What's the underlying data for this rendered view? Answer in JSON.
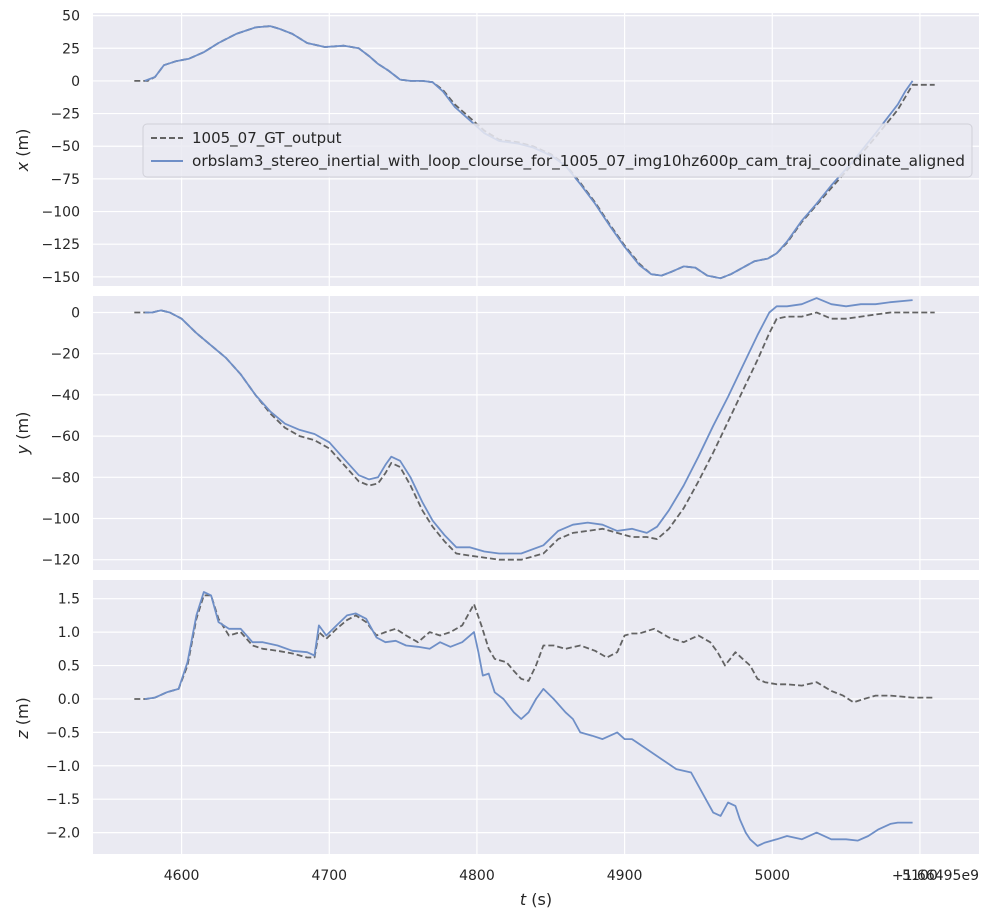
{
  "chart_data": {
    "type": "line",
    "shared_x": {
      "label": "t (s)",
      "label_var": "t",
      "label_unit": " (s)",
      "range": [
        4540,
        5140
      ],
      "ticks": [
        4600,
        4700,
        4800,
        4900,
        5000,
        5100
      ],
      "tick_labels": [
        "4600",
        "4700",
        "4800",
        "4900",
        "5000",
        "5100"
      ],
      "offset_text": "+1.66495e9"
    },
    "legend": {
      "placement": "center-left of top panel",
      "entries": [
        {
          "name": "1005_07_GT_output",
          "style": "dashed",
          "color": "#636363"
        },
        {
          "name": "orbslam3_stereo_inertial_with_loop_clourse_for_1005_07_img10hz600p_cam_traj_coordinate_aligned",
          "style": "solid",
          "color": "#6f8fc7"
        }
      ]
    },
    "panels": [
      {
        "id": "x",
        "ylabel": "x (m)",
        "label_var": "x",
        "label_unit": " (m)",
        "ylim": [
          -157,
          52
        ],
        "yticks": [
          50,
          25,
          0,
          -25,
          -50,
          -75,
          -100,
          -125,
          -150
        ],
        "ytick_labels": [
          "50",
          "25",
          "0",
          "−25",
          "−50",
          "−75",
          "−100",
          "−125",
          "−150"
        ],
        "series": [
          {
            "name": "1005_07_GT_output",
            "x": [
              4568,
              4577,
              4582,
              4588,
              4596,
              4605,
              4615,
              4625,
              4637,
              4650,
              4660,
              4666,
              4675,
              4685,
              4697,
              4710,
              4720,
              4727,
              4733,
              4740,
              4748,
              4755,
              4763,
              4770,
              4777,
              4785,
              4795,
              4805,
              4815,
              4828,
              4838,
              4850,
              4860,
              4870,
              4880,
              4890,
              4900,
              4910,
              4918,
              4925,
              4932,
              4940,
              4948,
              4956,
              4965,
              4972,
              4980,
              4988,
              4997,
              5003,
              5010,
              5020,
              5030,
              5040,
              5055,
              5070,
              5085,
              5095,
              5110
            ],
            "y": [
              0,
              0,
              3,
              12,
              15,
              17,
              22,
              29,
              36,
              41,
              42,
              40,
              36,
              29,
              26,
              27,
              25,
              19,
              13,
              8,
              1,
              0,
              0,
              -1,
              -7,
              -18,
              -28,
              -38,
              -45,
              -47,
              -50,
              -56,
              -64,
              -78,
              -93,
              -110,
              -126,
              -140,
              -148,
              -149,
              -146,
              -142,
              -143,
              -149,
              -151,
              -148,
              -143,
              -138,
              -136,
              -132,
              -124,
              -108,
              -95,
              -82,
              -63,
              -43,
              -22,
              -3,
              -3
            ]
          },
          {
            "name": "orbslam3_stereo_inertial_with_loop_clourse_for_1005_07_img10hz600p_cam_traj_coordinate_aligned",
            "x": [
              4575,
              4582,
              4588,
              4596,
              4605,
              4615,
              4625,
              4637,
              4650,
              4660,
              4666,
              4675,
              4685,
              4697,
              4710,
              4720,
              4727,
              4733,
              4740,
              4748,
              4755,
              4763,
              4770,
              4777,
              4785,
              4795,
              4805,
              4815,
              4828,
              4838,
              4850,
              4860,
              4870,
              4880,
              4890,
              4900,
              4910,
              4918,
              4925,
              4932,
              4940,
              4948,
              4956,
              4965,
              4972,
              4980,
              4988,
              4997,
              5003,
              5010,
              5020,
              5030,
              5040,
              5055,
              5070,
              5085,
              5090,
              5095
            ],
            "y": [
              0,
              3,
              12,
              15,
              17,
              22,
              29,
              36,
              41,
              42,
              40,
              36,
              29,
              26,
              27,
              25,
              19,
              13,
              8,
              1,
              0,
              0,
              -1,
              -8,
              -20,
              -30,
              -40,
              -46,
              -48,
              -51,
              -57,
              -65,
              -79,
              -94,
              -111,
              -127,
              -141,
              -148,
              -149,
              -146,
              -142,
              -143,
              -149,
              -151,
              -148,
              -143,
              -138,
              -136,
              -132,
              -123,
              -107,
              -94,
              -80,
              -61,
              -40,
              -18,
              -8,
              0
            ]
          }
        ]
      },
      {
        "id": "y",
        "ylabel": "y (m)",
        "label_var": "y",
        "label_unit": " (m)",
        "ylim": [
          -125,
          8
        ],
        "yticks": [
          0,
          -20,
          -40,
          -60,
          -80,
          -100,
          -120
        ],
        "ytick_labels": [
          "0",
          "−20",
          "−40",
          "−60",
          "−80",
          "−100",
          "−120"
        ],
        "series": [
          {
            "name": "1005_07_GT_output",
            "x": [
              4568,
              4575,
              4580,
              4586,
              4592,
              4600,
              4610,
              4620,
              4630,
              4640,
              4650,
              4660,
              4670,
              4680,
              4690,
              4700,
              4710,
              4720,
              4727,
              4733,
              4738,
              4742,
              4748,
              4755,
              4763,
              4770,
              4778,
              4786,
              4795,
              4805,
              4815,
              4830,
              4845,
              4855,
              4865,
              4875,
              4885,
              4895,
              4905,
              4915,
              4922,
              4930,
              4940,
              4950,
              4960,
              4970,
              4980,
              4990,
              4998,
              5003,
              5010,
              5020,
              5030,
              5040,
              5050,
              5060,
              5070,
              5080,
              5095,
              5110
            ],
            "y": [
              0,
              0,
              0,
              1,
              0,
              -3,
              -10,
              -16,
              -22,
              -30,
              -40,
              -49,
              -56,
              -60,
              -62,
              -66,
              -74,
              -82,
              -84,
              -83,
              -78,
              -73,
              -75,
              -84,
              -96,
              -104,
              -111,
              -117,
              -118,
              -119,
              -120,
              -120,
              -117,
              -110,
              -107,
              -106,
              -105,
              -107,
              -109,
              -109,
              -110,
              -105,
              -95,
              -82,
              -68,
              -53,
              -38,
              -23,
              -10,
              -3,
              -2,
              -2,
              0,
              -3,
              -3,
              -2,
              -1,
              0,
              0,
              0
            ]
          },
          {
            "name": "orbslam3_stereo_inertial_with_loop_clourse_for_1005_07_img10hz600p_cam_traj_coordinate_aligned",
            "x": [
              4575,
              4580,
              4586,
              4592,
              4600,
              4610,
              4620,
              4630,
              4640,
              4650,
              4660,
              4670,
              4680,
              4690,
              4700,
              4710,
              4720,
              4727,
              4733,
              4738,
              4742,
              4748,
              4755,
              4763,
              4770,
              4778,
              4786,
              4795,
              4805,
              4815,
              4830,
              4845,
              4855,
              4865,
              4875,
              4885,
              4895,
              4905,
              4915,
              4922,
              4930,
              4940,
              4950,
              4960,
              4970,
              4980,
              4990,
              4998,
              5003,
              5010,
              5020,
              5030,
              5040,
              5050,
              5060,
              5070,
              5080,
              5095
            ],
            "y": [
              0,
              0,
              1,
              0,
              -3,
              -10,
              -16,
              -22,
              -30,
              -40,
              -48,
              -54,
              -57,
              -59,
              -63,
              -71,
              -79,
              -81,
              -80,
              -74,
              -70,
              -72,
              -80,
              -92,
              -101,
              -108,
              -114,
              -114,
              -116,
              -117,
              -117,
              -113,
              -106,
              -103,
              -102,
              -103,
              -106,
              -105,
              -107,
              -104,
              -96,
              -84,
              -70,
              -55,
              -41,
              -26,
              -11,
              0,
              3,
              3,
              4,
              7,
              4,
              3,
              4,
              4,
              5,
              6
            ]
          }
        ]
      },
      {
        "id": "z",
        "ylabel": "z (m)",
        "label_var": "z",
        "label_unit": " (m)",
        "ylim": [
          -2.32,
          1.78
        ],
        "yticks": [
          1.5,
          1.0,
          0.5,
          0.0,
          -0.5,
          -1.0,
          -1.5,
          -2.0
        ],
        "ytick_labels": [
          "1.5",
          "1.0",
          "0.5",
          "0.0",
          "−0.5",
          "−1.0",
          "−1.5",
          "−2.0"
        ],
        "series": [
          {
            "name": "1005_07_GT_output",
            "x": [
              4568,
              4576,
              4582,
              4590,
              4598,
              4604,
              4610,
              4615,
              4620,
              4625,
              4632,
              4640,
              4648,
              4655,
              4665,
              4675,
              4685,
              4690,
              4693,
              4698,
              4705,
              4712,
              4718,
              4725,
              4732,
              4738,
              4745,
              4752,
              4760,
              4768,
              4775,
              4782,
              4790,
              4798,
              4803,
              4808,
              4812,
              4820,
              4825,
              4830,
              4835,
              4840,
              4845,
              4852,
              4860,
              4870,
              4880,
              4888,
              4895,
              4900,
              4905,
              4910,
              4920,
              4930,
              4940,
              4950,
              4958,
              4963,
              4968,
              4975,
              4980,
              4985,
              4990,
              4995,
              5003,
              5010,
              5020,
              5030,
              5040,
              5048,
              5055,
              5062,
              5070,
              5080,
              5095,
              5110
            ],
            "y": [
              0,
              0,
              0.02,
              0.1,
              0.15,
              0.5,
              1.2,
              1.55,
              1.55,
              1.2,
              0.95,
              1.0,
              0.8,
              0.75,
              0.72,
              0.68,
              0.62,
              0.62,
              1.0,
              0.9,
              1.05,
              1.18,
              1.25,
              1.15,
              0.95,
              1.0,
              1.05,
              0.95,
              0.85,
              1.0,
              0.95,
              1.0,
              1.1,
              1.42,
              1.1,
              0.75,
              0.6,
              0.55,
              0.42,
              0.3,
              0.27,
              0.5,
              0.8,
              0.8,
              0.75,
              0.8,
              0.72,
              0.62,
              0.7,
              0.95,
              0.98,
              0.98,
              1.05,
              0.92,
              0.85,
              0.95,
              0.85,
              0.7,
              0.5,
              0.7,
              0.6,
              0.5,
              0.3,
              0.25,
              0.22,
              0.22,
              0.2,
              0.25,
              0.12,
              0.05,
              -0.05,
              0.0,
              0.05,
              0.05,
              0.02,
              0.02
            ]
          },
          {
            "name": "orbslam3_stereo_inertial_with_loop_clourse_for_1005_07_img10hz600p_cam_traj_coordinate_aligned",
            "x": [
              4575,
              4582,
              4590,
              4598,
              4604,
              4610,
              4615,
              4620,
              4625,
              4632,
              4640,
              4648,
              4655,
              4665,
              4675,
              4685,
              4690,
              4693,
              4698,
              4705,
              4712,
              4718,
              4725,
              4732,
              4738,
              4745,
              4752,
              4760,
              4768,
              4775,
              4782,
              4790,
              4798,
              4801,
              4804,
              4808,
              4812,
              4818,
              4825,
              4830,
              4835,
              4840,
              4845,
              4852,
              4860,
              4865,
              4870,
              4878,
              4885,
              4895,
              4900,
              4905,
              4915,
              4925,
              4935,
              4945,
              4955,
              4960,
              4965,
              4970,
              4975,
              4978,
              4982,
              4985,
              4990,
              4995,
              5003,
              5010,
              5020,
              5030,
              5040,
              5050,
              5058,
              5065,
              5072,
              5080,
              5085,
              5095
            ],
            "y": [
              0,
              0.02,
              0.1,
              0.15,
              0.55,
              1.25,
              1.6,
              1.55,
              1.15,
              1.05,
              1.05,
              0.85,
              0.85,
              0.8,
              0.72,
              0.7,
              0.65,
              1.1,
              0.95,
              1.1,
              1.25,
              1.28,
              1.2,
              0.92,
              0.85,
              0.87,
              0.8,
              0.78,
              0.75,
              0.85,
              0.78,
              0.85,
              1.0,
              0.7,
              0.35,
              0.38,
              0.1,
              0.0,
              -0.2,
              -0.3,
              -0.2,
              0.0,
              0.15,
              0.0,
              -0.2,
              -0.3,
              -0.5,
              -0.55,
              -0.6,
              -0.5,
              -0.6,
              -0.6,
              -0.75,
              -0.9,
              -1.05,
              -1.1,
              -1.5,
              -1.7,
              -1.75,
              -1.55,
              -1.6,
              -1.8,
              -2.0,
              -2.1,
              -2.2,
              -2.15,
              -2.1,
              -2.05,
              -2.1,
              -2.0,
              -2.1,
              -2.1,
              -2.12,
              -2.05,
              -1.95,
              -1.87,
              -1.85,
              -1.85
            ]
          }
        ]
      }
    ]
  }
}
